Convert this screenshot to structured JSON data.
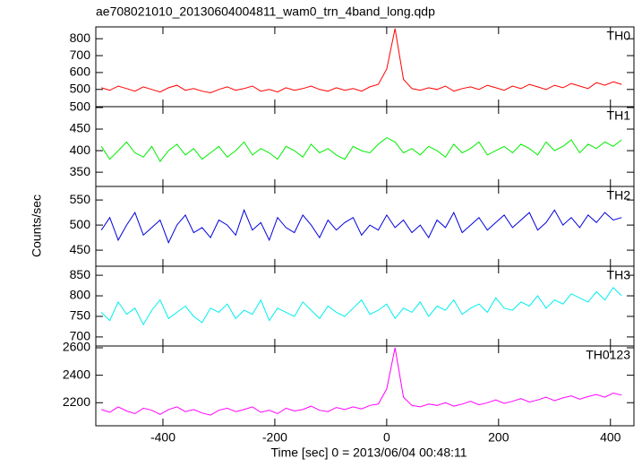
{
  "chart_data": {
    "type": "line",
    "title": "ae708021010_20130604004811_wam0_trn_4band_long.qdp",
    "xlabel": "Time [sec] 0 = 2013/06/04 00:48:11",
    "ylabel": "Counts/sec",
    "x": [
      -510,
      -495,
      -480,
      -465,
      -450,
      -435,
      -420,
      -405,
      -390,
      -375,
      -360,
      -345,
      -330,
      -315,
      -300,
      -285,
      -270,
      -255,
      -240,
      -225,
      -210,
      -195,
      -180,
      -165,
      -150,
      -135,
      -120,
      -105,
      -90,
      -75,
      -60,
      -45,
      -30,
      -15,
      0,
      15,
      30,
      45,
      60,
      75,
      90,
      105,
      120,
      135,
      150,
      165,
      180,
      195,
      210,
      225,
      240,
      255,
      270,
      285,
      300,
      315,
      330,
      345,
      360,
      375,
      390,
      405,
      420
    ],
    "xlim": [
      -520,
      442
    ],
    "xticks": [
      -400,
      -200,
      0,
      200,
      400
    ],
    "panels": [
      {
        "name": "TH0",
        "color": "#ff0000",
        "ylim": [
          398,
          870
        ],
        "yticks": [
          500,
          600,
          700,
          800
        ],
        "values": [
          510,
          495,
          520,
          505,
          490,
          515,
          500,
          485,
          510,
          525,
          495,
          505,
          490,
          480,
          500,
          515,
          495,
          505,
          520,
          490,
          500,
          485,
          510,
          495,
          505,
          520,
          500,
          490,
          510,
          495,
          505,
          490,
          515,
          530,
          620,
          860,
          560,
          505,
          495,
          510,
          500,
          520,
          490,
          505,
          515,
          500,
          525,
          510,
          495,
          520,
          505,
          530,
          515,
          500,
          525,
          510,
          535,
          520,
          505,
          540,
          525,
          545,
          530
        ]
      },
      {
        "name": "TH1",
        "color": "#00ee00",
        "ylim": [
          317,
          502
        ],
        "yticks": [
          350,
          400,
          450,
          500
        ],
        "values": [
          410,
          380,
          400,
          420,
          395,
          385,
          410,
          375,
          400,
          415,
          390,
          405,
          380,
          395,
          410,
          385,
          400,
          420,
          390,
          405,
          395,
          380,
          410,
          400,
          385,
          415,
          395,
          405,
          390,
          380,
          410,
          400,
          395,
          415,
          430,
          420,
          395,
          405,
          390,
          410,
          400,
          385,
          415,
          395,
          405,
          420,
          390,
          400,
          410,
          395,
          415,
          405,
          390,
          420,
          400,
          410,
          425,
          395,
          415,
          405,
          420,
          410,
          425
        ]
      },
      {
        "name": "TH2",
        "color": "#0000dd",
        "ylim": [
          418,
          577
        ],
        "yticks": [
          450,
          500,
          550
        ],
        "values": [
          490,
          515,
          470,
          500,
          525,
          480,
          495,
          510,
          465,
          500,
          520,
          485,
          495,
          475,
          510,
          500,
          480,
          530,
          490,
          505,
          470,
          515,
          495,
          485,
          520,
          500,
          475,
          510,
          490,
          505,
          515,
          480,
          500,
          490,
          520,
          495,
          510,
          485,
          500,
          475,
          510,
          495,
          525,
          485,
          500,
          515,
          490,
          505,
          520,
          495,
          510,
          525,
          490,
          505,
          530,
          500,
          515,
          495,
          520,
          505,
          525,
          510,
          515
        ]
      },
      {
        "name": "TH3",
        "color": "#00eeee",
        "ylim": [
          678,
          872
        ],
        "yticks": [
          700,
          750,
          800,
          850
        ],
        "values": [
          760,
          740,
          785,
          755,
          770,
          730,
          765,
          790,
          745,
          760,
          775,
          750,
          735,
          770,
          760,
          780,
          745,
          765,
          755,
          790,
          740,
          770,
          760,
          750,
          785,
          765,
          745,
          775,
          760,
          750,
          770,
          790,
          755,
          765,
          780,
          745,
          770,
          760,
          785,
          750,
          775,
          765,
          790,
          755,
          770,
          780,
          760,
          795,
          770,
          765,
          785,
          775,
          800,
          770,
          790,
          780,
          805,
          795,
          785,
          810,
          790,
          820,
          800
        ]
      },
      {
        "name": "TH0123",
        "color": "#ff00ff",
        "ylim": [
          2032,
          2613
        ],
        "yticks": [
          2200,
          2400,
          2600
        ],
        "values": [
          2150,
          2130,
          2170,
          2140,
          2120,
          2160,
          2145,
          2115,
          2150,
          2170,
          2135,
          2150,
          2125,
          2110,
          2145,
          2160,
          2135,
          2150,
          2170,
          2130,
          2145,
          2120,
          2160,
          2140,
          2150,
          2175,
          2145,
          2135,
          2165,
          2150,
          2170,
          2155,
          2180,
          2190,
          2300,
          2600,
          2240,
          2180,
          2170,
          2190,
          2180,
          2200,
          2175,
          2190,
          2210,
          2185,
          2200,
          2220,
          2195,
          2210,
          2230,
          2205,
          2220,
          2240,
          2215,
          2235,
          2250,
          2225,
          2245,
          2260,
          2240,
          2270,
          2255
        ]
      }
    ]
  }
}
